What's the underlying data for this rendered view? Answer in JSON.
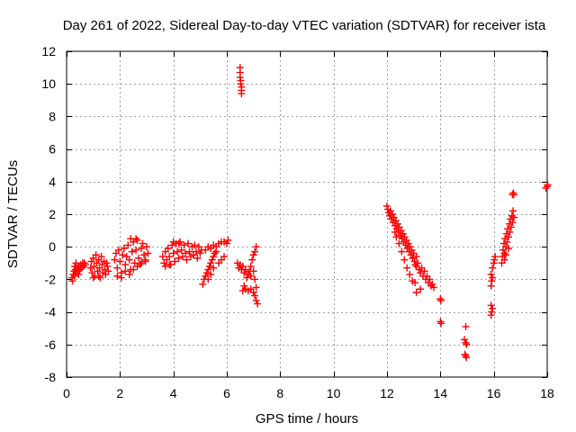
{
  "chart_data": {
    "type": "scatter",
    "title": "Day 261 of 2022, Sidereal Day-to-day VTEC variation (SDTVAR) for receiver ista",
    "xlabel": "GPS time / hours",
    "ylabel": "SDTVAR / TECUs",
    "xlim": [
      0,
      18
    ],
    "ylim": [
      -8,
      12
    ],
    "xticks": [
      0,
      2,
      4,
      6,
      8,
      10,
      12,
      14,
      16,
      18
    ],
    "yticks": [
      -8,
      -6,
      -4,
      -2,
      0,
      2,
      4,
      6,
      8,
      10,
      12
    ],
    "xtick_labels": [
      "0",
      "2",
      "4",
      "6",
      "8",
      "10",
      "12",
      "14",
      "16",
      "18"
    ],
    "ytick_labels": [
      "-8",
      "-6",
      "-4",
      "-2",
      "0",
      "2",
      "4",
      "6",
      "8",
      "10",
      "12"
    ],
    "grid": true,
    "marker": "plus",
    "marker_color": "#ff0000",
    "series": [
      {
        "name": "SDTVAR",
        "points": [
          [
            0.2,
            -1.9
          ],
          [
            0.22,
            -2.1
          ],
          [
            0.25,
            -1.7
          ],
          [
            0.28,
            -1.5
          ],
          [
            0.3,
            -1.8
          ],
          [
            0.33,
            -1.4
          ],
          [
            0.36,
            -1.6
          ],
          [
            0.4,
            -1.3
          ],
          [
            0.43,
            -1.5
          ],
          [
            0.46,
            -1.2
          ],
          [
            0.5,
            -1.4
          ],
          [
            0.53,
            -1.1
          ],
          [
            0.56,
            -1.3
          ],
          [
            0.6,
            -1.0
          ],
          [
            0.63,
            -1.2
          ],
          [
            0.66,
            -1.0
          ],
          [
            0.7,
            -1.1
          ],
          [
            0.3,
            -1.2
          ],
          [
            0.35,
            -1.0
          ],
          [
            0.45,
            -1.7
          ],
          [
            0.9,
            -1.3
          ],
          [
            0.93,
            -0.9
          ],
          [
            0.96,
            -1.6
          ],
          [
            1.0,
            -0.7
          ],
          [
            1.03,
            -1.2
          ],
          [
            1.06,
            -1.8
          ],
          [
            1.1,
            -0.5
          ],
          [
            1.13,
            -1.0
          ],
          [
            1.16,
            -1.5
          ],
          [
            1.2,
            -0.8
          ],
          [
            1.23,
            -1.3
          ],
          [
            1.26,
            -1.9
          ],
          [
            1.3,
            -0.6
          ],
          [
            1.33,
            -1.1
          ],
          [
            1.36,
            -1.6
          ],
          [
            1.4,
            -0.9
          ],
          [
            1.43,
            -1.4
          ],
          [
            1.46,
            -1.7
          ],
          [
            1.5,
            -1.0
          ],
          [
            1.53,
            -1.2
          ],
          [
            1.56,
            -1.5
          ],
          [
            1.0,
            -1.9
          ],
          [
            1.2,
            -1.8
          ],
          [
            1.8,
            -0.8
          ],
          [
            1.85,
            -0.4
          ],
          [
            1.9,
            -1.3
          ],
          [
            1.95,
            -0.2
          ],
          [
            2.0,
            -0.9
          ],
          [
            2.05,
            -1.6
          ],
          [
            2.1,
            -0.5
          ],
          [
            2.15,
            -0.1
          ],
          [
            2.2,
            -1.1
          ],
          [
            2.25,
            -0.6
          ],
          [
            2.3,
            0.1
          ],
          [
            2.35,
            -0.8
          ],
          [
            2.4,
            -1.4
          ],
          [
            2.45,
            -0.3
          ],
          [
            2.5,
            0.3
          ],
          [
            2.55,
            -1.0
          ],
          [
            2.6,
            -0.2
          ],
          [
            2.65,
            0.4
          ],
          [
            2.7,
            -0.7
          ],
          [
            2.75,
            -1.1
          ],
          [
            2.8,
            -0.1
          ],
          [
            2.85,
            0.2
          ],
          [
            2.9,
            -0.5
          ],
          [
            2.95,
            -0.9
          ],
          [
            3.0,
            0.0
          ],
          [
            3.05,
            -0.4
          ],
          [
            1.9,
            -1.8
          ],
          [
            2.05,
            -1.9
          ],
          [
            2.2,
            -1.5
          ],
          [
            2.35,
            -1.7
          ],
          [
            2.5,
            -1.4
          ],
          [
            2.65,
            -1.2
          ],
          [
            2.8,
            -1.0
          ],
          [
            2.95,
            -0.8
          ],
          [
            2.4,
            0.5
          ],
          [
            2.6,
            0.5
          ],
          [
            3.6,
            -0.6
          ],
          [
            3.65,
            -1.0
          ],
          [
            3.7,
            -0.3
          ],
          [
            3.75,
            -0.8
          ],
          [
            3.8,
            -0.1
          ],
          [
            3.85,
            -0.6
          ],
          [
            3.9,
            -1.1
          ],
          [
            3.95,
            0.1
          ],
          [
            4.0,
            -0.4
          ],
          [
            4.05,
            -0.9
          ],
          [
            4.1,
            0.2
          ],
          [
            4.15,
            -0.3
          ],
          [
            4.2,
            -0.7
          ],
          [
            4.25,
            0.3
          ],
          [
            4.3,
            -0.2
          ],
          [
            4.35,
            -0.6
          ],
          [
            4.4,
            0.1
          ],
          [
            4.45,
            -0.4
          ],
          [
            4.5,
            -0.8
          ],
          [
            4.55,
            0.2
          ],
          [
            4.6,
            -0.3
          ],
          [
            4.65,
            -0.6
          ],
          [
            4.7,
            0.0
          ],
          [
            4.75,
            -0.5
          ],
          [
            4.8,
            0.1
          ],
          [
            4.85,
            -0.3
          ],
          [
            4.9,
            -0.7
          ],
          [
            4.95,
            0.0
          ],
          [
            5.0,
            -0.4
          ],
          [
            5.05,
            -0.2
          ],
          [
            4.0,
            0.3
          ],
          [
            4.2,
            0.2
          ],
          [
            3.7,
            -1.2
          ],
          [
            3.85,
            -1.1
          ],
          [
            5.2,
            -0.2
          ],
          [
            5.3,
            0.0
          ],
          [
            5.4,
            -0.1
          ],
          [
            5.5,
            0.1
          ],
          [
            5.6,
            0.0
          ],
          [
            5.7,
            0.2
          ],
          [
            5.8,
            0.3
          ],
          [
            5.9,
            0.3
          ],
          [
            6.0,
            0.2
          ],
          [
            6.05,
            0.4
          ],
          [
            5.1,
            -2.3
          ],
          [
            5.15,
            -2.0
          ],
          [
            5.2,
            -1.8
          ],
          [
            5.25,
            -1.6
          ],
          [
            5.3,
            -1.4
          ],
          [
            5.35,
            -1.2
          ],
          [
            5.4,
            -1.0
          ],
          [
            5.45,
            -0.8
          ],
          [
            5.5,
            -0.6
          ],
          [
            5.55,
            -0.4
          ],
          [
            5.6,
            -0.3
          ],
          [
            5.3,
            -2.0
          ],
          [
            5.4,
            -1.7
          ],
          [
            5.5,
            -1.3
          ],
          [
            5.7,
            -1.0
          ],
          [
            5.8,
            -0.8
          ],
          [
            5.9,
            -0.6
          ],
          [
            6.5,
            11.0
          ],
          [
            6.5,
            10.7
          ],
          [
            6.5,
            10.4
          ],
          [
            6.52,
            10.2
          ],
          [
            6.52,
            10.0
          ],
          [
            6.55,
            9.8
          ],
          [
            6.55,
            9.6
          ],
          [
            6.55,
            9.4
          ],
          [
            6.4,
            -1.0
          ],
          [
            6.45,
            -1.3
          ],
          [
            6.5,
            -1.1
          ],
          [
            6.55,
            -1.4
          ],
          [
            6.6,
            -1.2
          ],
          [
            6.65,
            -1.6
          ],
          [
            6.7,
            -1.4
          ],
          [
            6.75,
            -1.9
          ],
          [
            6.8,
            -1.7
          ],
          [
            6.85,
            -1.5
          ],
          [
            6.9,
            -1.2
          ],
          [
            6.95,
            -0.8
          ],
          [
            7.0,
            -0.5
          ],
          [
            7.05,
            -0.3
          ],
          [
            7.1,
            0.0
          ],
          [
            6.9,
            -1.8
          ],
          [
            7.0,
            -1.5
          ],
          [
            7.05,
            -2.0
          ],
          [
            6.6,
            -2.7
          ],
          [
            6.7,
            -2.6
          ],
          [
            6.8,
            -2.7
          ],
          [
            6.9,
            -2.6
          ],
          [
            7.0,
            -2.8
          ],
          [
            7.05,
            -3.0
          ],
          [
            7.1,
            -3.3
          ],
          [
            7.15,
            -3.5
          ],
          [
            7.1,
            -2.5
          ],
          [
            6.65,
            -2.4
          ],
          [
            12.0,
            2.5
          ],
          [
            12.03,
            2.3
          ],
          [
            12.06,
            2.1
          ],
          [
            12.1,
            1.9
          ],
          [
            12.13,
            2.2
          ],
          [
            12.16,
            1.7
          ],
          [
            12.2,
            2.0
          ],
          [
            12.23,
            1.5
          ],
          [
            12.26,
            1.8
          ],
          [
            12.3,
            1.3
          ],
          [
            12.33,
            1.6
          ],
          [
            12.36,
            1.1
          ],
          [
            12.4,
            1.4
          ],
          [
            12.43,
            0.9
          ],
          [
            12.46,
            1.2
          ],
          [
            12.5,
            0.7
          ],
          [
            12.53,
            1.0
          ],
          [
            12.56,
            0.5
          ],
          [
            12.6,
            0.8
          ],
          [
            12.63,
            0.3
          ],
          [
            12.66,
            0.6
          ],
          [
            12.7,
            0.1
          ],
          [
            12.73,
            0.4
          ],
          [
            12.76,
            -0.1
          ],
          [
            12.8,
            0.2
          ],
          [
            12.83,
            -0.3
          ],
          [
            12.86,
            0.0
          ],
          [
            12.9,
            -0.5
          ],
          [
            12.93,
            -0.2
          ],
          [
            12.96,
            -0.7
          ],
          [
            13.0,
            -0.4
          ],
          [
            13.03,
            -0.9
          ],
          [
            13.06,
            -1.1
          ],
          [
            13.1,
            -0.6
          ],
          [
            12.3,
            0.9
          ],
          [
            12.35,
            0.6
          ],
          [
            12.45,
            0.2
          ],
          [
            12.55,
            -0.3
          ],
          [
            12.65,
            -0.8
          ],
          [
            12.75,
            -1.3
          ],
          [
            12.85,
            -1.7
          ],
          [
            12.95,
            -2.1
          ],
          [
            13.1,
            -1.2
          ],
          [
            13.15,
            -1.0
          ],
          [
            13.2,
            -1.4
          ],
          [
            13.25,
            -1.6
          ],
          [
            13.3,
            -1.3
          ],
          [
            13.35,
            -1.8
          ],
          [
            13.4,
            -1.5
          ],
          [
            13.45,
            -2.0
          ],
          [
            13.5,
            -1.8
          ],
          [
            13.55,
            -2.2
          ],
          [
            13.6,
            -2.0
          ],
          [
            13.65,
            -2.4
          ],
          [
            13.7,
            -2.3
          ],
          [
            13.75,
            -2.5
          ],
          [
            13.05,
            -2.2
          ],
          [
            13.1,
            -2.8
          ],
          [
            13.25,
            -2.6
          ],
          [
            14.0,
            -3.2
          ],
          [
            14.02,
            -3.3
          ],
          [
            14.0,
            -4.6
          ],
          [
            14.03,
            -4.7
          ],
          [
            14.95,
            -4.9
          ],
          [
            14.9,
            -5.7
          ],
          [
            14.95,
            -5.9
          ],
          [
            14.98,
            -6.0
          ],
          [
            14.92,
            -6.6
          ],
          [
            14.95,
            -6.7
          ],
          [
            14.97,
            -6.8
          ],
          [
            15.9,
            -4.2
          ],
          [
            15.92,
            -4.0
          ],
          [
            15.95,
            -3.8
          ],
          [
            15.9,
            -3.6
          ],
          [
            15.9,
            -2.4
          ],
          [
            15.92,
            -2.1
          ],
          [
            15.95,
            -1.9
          ],
          [
            15.9,
            -1.7
          ],
          [
            15.95,
            -1.3
          ],
          [
            16.0,
            -1.0
          ],
          [
            16.02,
            -0.8
          ],
          [
            16.05,
            -0.6
          ],
          [
            16.3,
            -1.0
          ],
          [
            16.32,
            -0.6
          ],
          [
            16.35,
            -0.2
          ],
          [
            16.38,
            0.2
          ],
          [
            16.4,
            -0.4
          ],
          [
            16.42,
            0.5
          ],
          [
            16.45,
            0.0
          ],
          [
            16.48,
            0.8
          ],
          [
            16.5,
            0.3
          ],
          [
            16.52,
            1.1
          ],
          [
            16.55,
            0.6
          ],
          [
            16.58,
            1.4
          ],
          [
            16.6,
            0.9
          ],
          [
            16.62,
            1.7
          ],
          [
            16.65,
            1.2
          ],
          [
            16.68,
            1.9
          ],
          [
            16.7,
            1.5
          ],
          [
            16.72,
            2.2
          ],
          [
            16.75,
            1.8
          ],
          [
            16.4,
            -0.8
          ],
          [
            16.45,
            -0.5
          ],
          [
            16.55,
            -0.1
          ],
          [
            16.7,
            3.2
          ],
          [
            16.73,
            3.3
          ],
          [
            16.75,
            3.2
          ],
          [
            17.95,
            3.6
          ],
          [
            18.0,
            3.7
          ],
          [
            18.02,
            3.8
          ]
        ]
      }
    ]
  }
}
